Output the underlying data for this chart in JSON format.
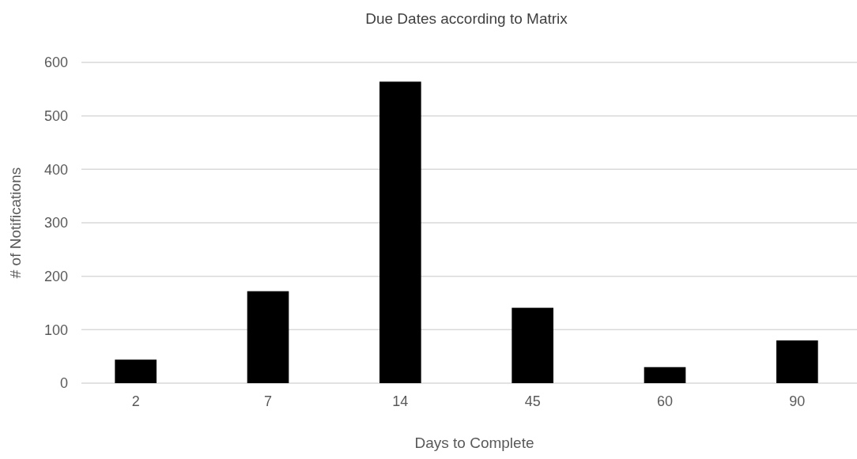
{
  "chart_data": {
    "type": "bar",
    "title": "Due Dates according to Matrix",
    "xlabel": "Days to Complete",
    "ylabel": "# of Notifications",
    "categories": [
      "2",
      "7",
      "14",
      "45",
      "60",
      "90"
    ],
    "values": [
      44,
      172,
      564,
      141,
      30,
      80
    ],
    "color": "#000000",
    "ylim": [
      0,
      600
    ],
    "yticks": [
      0,
      100,
      200,
      300,
      400,
      500,
      600
    ],
    "grid": "y"
  }
}
